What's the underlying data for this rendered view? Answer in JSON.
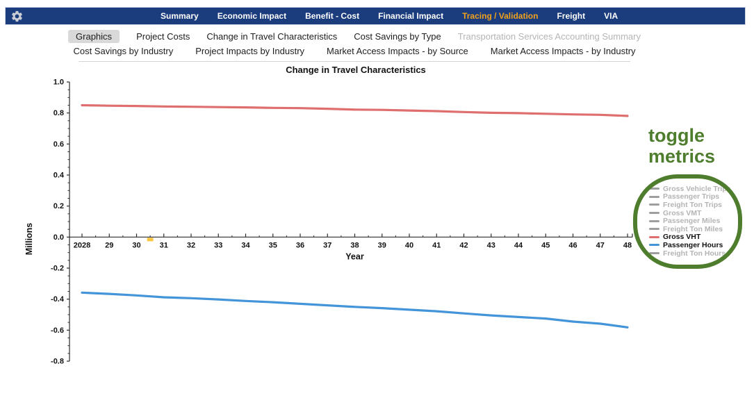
{
  "navbar": {
    "bar_color": "#1b3c7d",
    "active_color": "#f0a21c",
    "gear_icon": "settings-gear",
    "items": [
      {
        "label": "Summary",
        "active": false
      },
      {
        "label": "Economic Impact",
        "active": false
      },
      {
        "label": "Benefit - Cost",
        "active": false
      },
      {
        "label": "Financial Impact",
        "active": false
      },
      {
        "label": "Tracing / Validation",
        "active": true
      },
      {
        "label": "Freight",
        "active": false
      },
      {
        "label": "VIA",
        "active": false
      }
    ]
  },
  "tabs": {
    "selected_bg": "#d9d9d9",
    "rows": [
      [
        {
          "label": "Graphics",
          "selected": true,
          "disabled": false
        },
        {
          "label": "Project Costs",
          "selected": false,
          "disabled": false
        },
        {
          "label": "Change in Travel Characteristics",
          "selected": false,
          "disabled": false
        },
        {
          "label": "Cost Savings by Type",
          "selected": false,
          "disabled": false
        },
        {
          "label": "Transportation Services Accounting Summary",
          "selected": false,
          "disabled": true
        }
      ],
      [
        {
          "label": "Cost Savings by Industry",
          "selected": false,
          "disabled": false
        },
        {
          "label": "Project Impacts by Industry",
          "selected": false,
          "disabled": false
        },
        {
          "label": "Market Access Impacts - by Source",
          "selected": false,
          "disabled": false
        },
        {
          "label": "Market Access Impacts - by Industry",
          "selected": false,
          "disabled": false
        }
      ]
    ]
  },
  "annotation": {
    "text": "toggle metrics",
    "color": "#4e7d2d"
  },
  "chart_data": {
    "type": "line",
    "title": "Change in Travel Characteristics",
    "xlabel": "Year",
    "ylabel": "Millions",
    "ylim": [
      -0.8,
      1.0
    ],
    "ytick_step": 0.2,
    "grid": false,
    "x": [
      2028,
      2029,
      2030,
      2031,
      2032,
      2033,
      2034,
      2035,
      2036,
      2037,
      2038,
      2039,
      2040,
      2041,
      2042,
      2043,
      2044,
      2045,
      2046,
      2047,
      2048
    ],
    "x_tick_labels": [
      "2028",
      "29",
      "30",
      "31",
      "32",
      "33",
      "34",
      "35",
      "36",
      "37",
      "38",
      "39",
      "40",
      "41",
      "42",
      "43",
      "44",
      "45",
      "46",
      "47",
      "48"
    ],
    "axis_marker": {
      "x": 2030.5,
      "color": "#f9c440"
    },
    "series": [
      {
        "name": "Gross VHT",
        "color": "#df6e6e",
        "values": [
          0.85,
          0.847,
          0.845,
          0.842,
          0.84,
          0.838,
          0.836,
          0.833,
          0.831,
          0.827,
          0.822,
          0.82,
          0.816,
          0.812,
          0.806,
          0.801,
          0.799,
          0.795,
          0.791,
          0.788,
          0.781
        ]
      },
      {
        "name": "Passenger Hours",
        "color": "#4394d8",
        "values": [
          -0.358,
          -0.366,
          -0.376,
          -0.388,
          -0.394,
          -0.402,
          -0.412,
          -0.42,
          -0.43,
          -0.44,
          -0.45,
          -0.458,
          -0.468,
          -0.478,
          -0.492,
          -0.505,
          -0.515,
          -0.525,
          -0.545,
          -0.558,
          -0.582
        ]
      }
    ],
    "legend": {
      "position": "right",
      "disabled_color": "#b4b4b4",
      "disabled_swatch": "#9e9e9e",
      "items": [
        {
          "label": "Gross Vehicle Trips",
          "enabled": false
        },
        {
          "label": "Passenger Trips",
          "enabled": false
        },
        {
          "label": "Freight Ton Trips",
          "enabled": false
        },
        {
          "label": "Gross VMT",
          "enabled": false
        },
        {
          "label": "Passenger Miles",
          "enabled": false
        },
        {
          "label": "Freight Ton Miles",
          "enabled": false
        },
        {
          "label": "Gross VHT",
          "enabled": true,
          "color": "#df6e6e"
        },
        {
          "label": "Passenger Hours",
          "enabled": true,
          "color": "#4394d8"
        },
        {
          "label": "Freight Ton Hours",
          "enabled": false
        }
      ]
    }
  }
}
